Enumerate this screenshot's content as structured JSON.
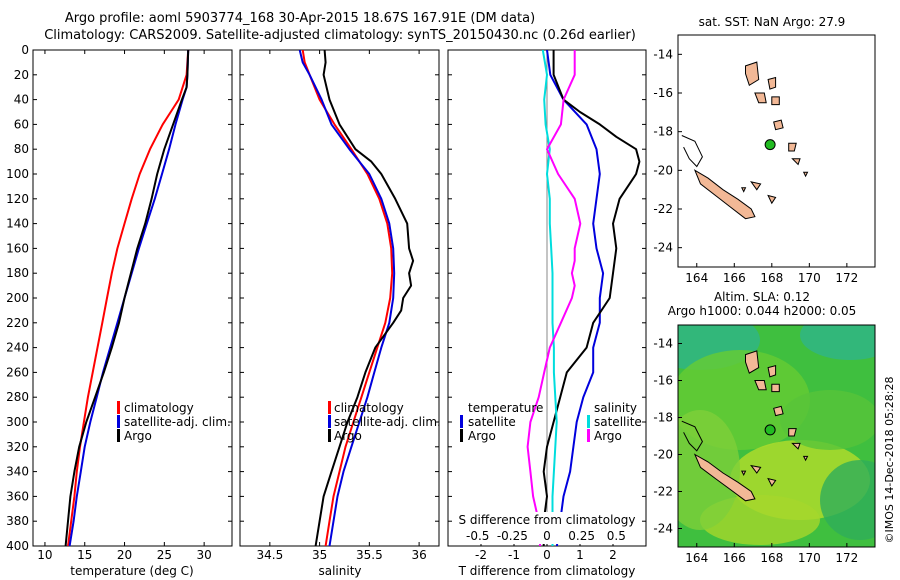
{
  "header": {
    "line1": "Argo profile: aoml 5903774_168 30-Apr-2015 18.67S 167.91E (DM data)",
    "line2": "Climatology: CARS2009. Satellite-adjusted climatology: synTS_20150430.nc (0.26d earlier)"
  },
  "depth_ticks": [
    "0",
    "20",
    "40",
    "60",
    "80",
    "100",
    "120",
    "140",
    "160",
    "180",
    "200",
    "220",
    "240",
    "260",
    "280",
    "300",
    "320",
    "340",
    "360",
    "380",
    "400"
  ],
  "colors": {
    "climatology": "#ff0000",
    "satellite": "#0000dd",
    "argo": "#000000",
    "s_argo": "#ff00ff",
    "s_sat": "#00dddd",
    "land": "#f2b896"
  },
  "legend": {
    "climatology": "climatology",
    "satellite": "satellite-adj. clim.",
    "argo": "Argo"
  },
  "diff_legend": {
    "temperature": "temperature",
    "salinity": "salinity",
    "satellite": "satellite",
    "argo": "Argo"
  },
  "chart_data": [
    {
      "type": "line",
      "title": "",
      "xlabel": "temperature (deg C)",
      "ylabel": "depth",
      "xlim": [
        8.5,
        33.5
      ],
      "ylim": [
        400,
        0
      ],
      "xticks": [
        "10",
        "15",
        "20",
        "25",
        "30"
      ],
      "series": [
        {
          "name": "climatology",
          "depth": [
            0,
            20,
            40,
            50,
            60,
            80,
            100,
            120,
            140,
            160,
            180,
            200,
            220,
            240,
            260,
            280,
            300,
            320,
            340,
            360,
            380,
            400
          ],
          "values": [
            28.0,
            27.8,
            26.8,
            25.8,
            24.8,
            23.2,
            21.9,
            20.9,
            20.0,
            19.1,
            18.4,
            17.8,
            17.2,
            16.6,
            16.0,
            15.4,
            14.9,
            14.4,
            14.0,
            13.7,
            13.3,
            12.9
          ]
        },
        {
          "name": "satellite-adj. clim.",
          "depth": [
            0,
            20,
            30,
            40,
            60,
            80,
            100,
            120,
            140,
            160,
            180,
            200,
            220,
            240,
            260,
            280,
            300,
            320,
            340,
            360,
            380,
            400
          ],
          "values": [
            28.0,
            27.9,
            27.8,
            27.3,
            26.4,
            25.6,
            24.7,
            23.8,
            22.8,
            21.8,
            20.9,
            20.0,
            19.1,
            18.2,
            17.3,
            16.5,
            15.7,
            15.0,
            14.5,
            14.0,
            13.6,
            13.1
          ]
        },
        {
          "name": "Argo",
          "depth": [
            0,
            20,
            30,
            40,
            60,
            80,
            100,
            120,
            140,
            160,
            180,
            200,
            220,
            240,
            260,
            280,
            300,
            320,
            340,
            360,
            380,
            400
          ],
          "values": [
            28.0,
            27.9,
            27.8,
            27.2,
            26.1,
            25.0,
            24.1,
            23.4,
            22.6,
            21.6,
            20.8,
            20.0,
            19.3,
            18.4,
            17.4,
            16.3,
            15.2,
            14.3,
            13.7,
            13.2,
            12.9,
            12.6
          ]
        }
      ]
    },
    {
      "type": "line",
      "title": "",
      "xlabel": "salinity",
      "ylabel": "depth",
      "xlim": [
        34.2,
        36.2
      ],
      "ylim": [
        400,
        0
      ],
      "xticks": [
        "34.5",
        "35",
        "35.5",
        "36"
      ],
      "series": [
        {
          "name": "climatology",
          "depth": [
            0,
            10,
            20,
            40,
            60,
            80,
            100,
            120,
            140,
            160,
            180,
            200,
            220,
            240,
            260,
            280,
            300,
            320,
            340,
            360,
            380,
            400
          ],
          "values": [
            34.83,
            34.85,
            34.9,
            35.0,
            35.15,
            35.32,
            35.48,
            35.6,
            35.68,
            35.72,
            35.73,
            35.71,
            35.66,
            35.58,
            35.5,
            35.42,
            35.34,
            35.26,
            35.2,
            35.14,
            35.1,
            35.06
          ]
        },
        {
          "name": "satellite-adj. clim.",
          "depth": [
            0,
            10,
            20,
            40,
            60,
            80,
            100,
            120,
            140,
            160,
            180,
            200,
            220,
            240,
            260,
            280,
            300,
            320,
            340,
            360,
            380,
            400
          ],
          "values": [
            34.8,
            34.83,
            34.9,
            35.02,
            35.12,
            35.3,
            35.5,
            35.62,
            35.7,
            35.74,
            35.75,
            35.74,
            35.7,
            35.62,
            35.55,
            35.48,
            35.4,
            35.32,
            35.24,
            35.18,
            35.14,
            35.1
          ]
        },
        {
          "name": "Argo",
          "depth": [
            0,
            10,
            20,
            40,
            60,
            80,
            90,
            100,
            120,
            140,
            160,
            170,
            180,
            190,
            200,
            210,
            220,
            240,
            260,
            280,
            300,
            320,
            340,
            360,
            380,
            400
          ],
          "values": [
            35.05,
            35.06,
            35.04,
            35.1,
            35.2,
            35.36,
            35.52,
            35.62,
            35.76,
            35.88,
            35.9,
            35.94,
            35.9,
            35.92,
            35.84,
            35.82,
            35.74,
            35.56,
            35.46,
            35.38,
            35.28,
            35.2,
            35.12,
            35.04,
            35.0,
            34.96
          ]
        }
      ]
    },
    {
      "type": "line",
      "title": "",
      "xlabel": "T difference from climatology",
      "xlabel2": "S difference from climatology",
      "ylabel": "depth",
      "xlim": [
        -3,
        3
      ],
      "ylim": [
        400,
        0
      ],
      "xticks": [
        "-2",
        "-1",
        "0",
        "1",
        "2"
      ],
      "xticks2": [
        "-0.5",
        "-0.25",
        "0",
        "0.25",
        "0.5"
      ],
      "series": [
        {
          "name": "temperature satellite",
          "depth": [
            0,
            20,
            40,
            60,
            80,
            100,
            120,
            140,
            160,
            180,
            200,
            220,
            240,
            260,
            280,
            300,
            320,
            340,
            360,
            380,
            400
          ],
          "values": [
            0.0,
            0.1,
            0.5,
            1.2,
            1.5,
            1.6,
            1.5,
            1.4,
            1.5,
            1.7,
            1.6,
            1.6,
            1.4,
            1.4,
            1.1,
            0.9,
            0.8,
            0.7,
            0.5,
            0.4,
            0.3
          ]
        },
        {
          "name": "temperature Argo",
          "depth": [
            0,
            20,
            40,
            50,
            60,
            70,
            80,
            90,
            100,
            120,
            140,
            160,
            180,
            200,
            220,
            240,
            260,
            280,
            300,
            320,
            340,
            360,
            380,
            400
          ],
          "values": [
            0.2,
            0.2,
            0.5,
            1.0,
            1.6,
            2.1,
            2.7,
            2.8,
            2.7,
            2.2,
            2.0,
            2.1,
            2.0,
            1.9,
            1.4,
            1.2,
            0.6,
            0.4,
            0.2,
            0.0,
            -0.1,
            0.0,
            -0.1,
            -0.1
          ]
        },
        {
          "name": "salinity satellite",
          "depth": [
            0,
            20,
            40,
            60,
            80,
            100,
            120,
            140,
            160,
            180,
            200,
            220,
            240,
            260,
            280,
            300,
            320,
            340,
            360,
            380,
            400
          ],
          "values": [
            -0.03,
            0.0,
            -0.02,
            -0.01,
            0.02,
            0.0,
            0.02,
            0.02,
            0.03,
            0.04,
            0.04,
            0.04,
            0.05,
            0.05,
            0.06,
            0.07,
            0.06,
            0.05,
            0.04,
            0.04,
            0.04
          ]
        },
        {
          "name": "salinity Argo",
          "depth": [
            0,
            20,
            40,
            60,
            80,
            100,
            120,
            140,
            160,
            170,
            180,
            190,
            200,
            220,
            240,
            260,
            280,
            300,
            320,
            340,
            360,
            380,
            400
          ],
          "values": [
            0.2,
            0.2,
            0.12,
            0.1,
            0.0,
            0.08,
            0.2,
            0.24,
            0.2,
            0.2,
            0.18,
            0.2,
            0.18,
            0.1,
            0.02,
            -0.02,
            -0.06,
            -0.12,
            -0.14,
            -0.12,
            -0.1,
            -0.06,
            -0.05
          ]
        }
      ]
    },
    {
      "type": "map",
      "title": "sat. SST: NaN Argo: 27.9",
      "xlim": [
        163,
        173.5
      ],
      "ylim": [
        -25,
        -13
      ],
      "xticks": [
        "164",
        "166",
        "168",
        "170",
        "172"
      ],
      "yticks": [
        "-14",
        "-16",
        "-18",
        "-20",
        "-22",
        "-24"
      ],
      "marker": {
        "lon": 167.91,
        "lat": -18.67
      }
    },
    {
      "type": "heatmap",
      "title": "Altim. SLA: 0.12",
      "subtitle": "Argo h1000: 0.044 h2000: 0.05",
      "xlim": [
        163,
        173.5
      ],
      "ylim": [
        -25,
        -13
      ],
      "xticks": [
        "164",
        "166",
        "168",
        "170",
        "172"
      ],
      "yticks": [
        "-14",
        "-16",
        "-18",
        "-20",
        "-22",
        "-24"
      ],
      "marker": {
        "lon": 167.91,
        "lat": -18.67
      }
    }
  ],
  "credit": "©IMOS 14-Dec-2018 05:28:28"
}
